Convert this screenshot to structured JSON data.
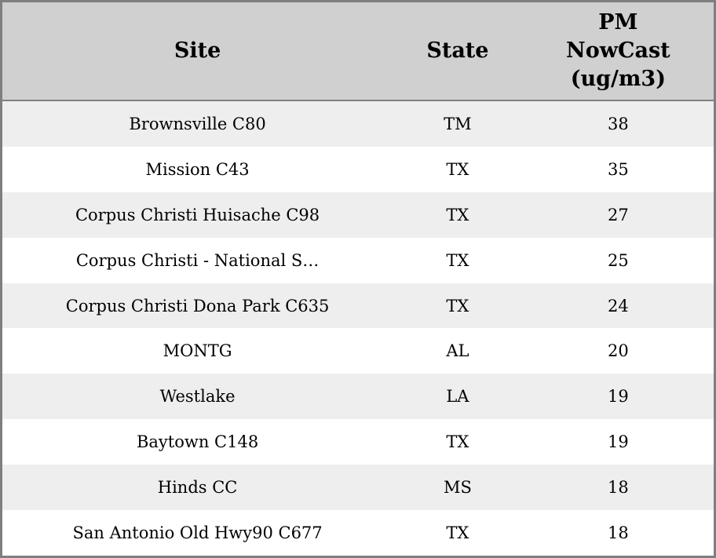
{
  "colors": {
    "header_bg": "#d0d0d0",
    "row_alt_bg": "#eeeeee",
    "row_bg": "#ffffff",
    "border": "#7f7f7f",
    "text": "#000000"
  },
  "table": {
    "columns": [
      {
        "label": "Site"
      },
      {
        "label": "State"
      },
      {
        "label": "PM\nNowCast\n(ug/m3)"
      }
    ],
    "rows": [
      {
        "site": "Brownsville C80",
        "state": "TM",
        "pm_nowcast": "38"
      },
      {
        "site": "Mission C43",
        "state": "TX",
        "pm_nowcast": "35"
      },
      {
        "site": "Corpus Christi Huisache C98",
        "state": "TX",
        "pm_nowcast": "27"
      },
      {
        "site": "Corpus Christi - National S…",
        "state": "TX",
        "pm_nowcast": "25"
      },
      {
        "site": "Corpus Christi Dona Park C635",
        "state": "TX",
        "pm_nowcast": "24"
      },
      {
        "site": "MONTG",
        "state": "AL",
        "pm_nowcast": "20"
      },
      {
        "site": "Westlake",
        "state": "LA",
        "pm_nowcast": "19"
      },
      {
        "site": "Baytown C148",
        "state": "TX",
        "pm_nowcast": "19"
      },
      {
        "site": "Hinds CC",
        "state": "MS",
        "pm_nowcast": "18"
      },
      {
        "site": "San Antonio Old Hwy90 C677",
        "state": "TX",
        "pm_nowcast": "18"
      }
    ]
  },
  "chart_data": {
    "type": "table",
    "columns": [
      "Site",
      "State",
      "PM NowCast (ug/m3)"
    ],
    "rows": [
      [
        "Brownsville C80",
        "TM",
        38
      ],
      [
        "Mission C43",
        "TX",
        35
      ],
      [
        "Corpus Christi Huisache C98",
        "TX",
        27
      ],
      [
        "Corpus Christi - National S…",
        "TX",
        25
      ],
      [
        "Corpus Christi Dona Park C635",
        "TX",
        24
      ],
      [
        "MONTG",
        "AL",
        20
      ],
      [
        "Westlake",
        "LA",
        19
      ],
      [
        "Baytown C148",
        "TX",
        19
      ],
      [
        "Hinds CC",
        "MS",
        18
      ],
      [
        "San Antonio Old Hwy90 C677",
        "TX",
        18
      ]
    ],
    "layout": {
      "header_row": true,
      "zebra_striping": true,
      "value_sort": "descending by PM NowCast"
    }
  }
}
